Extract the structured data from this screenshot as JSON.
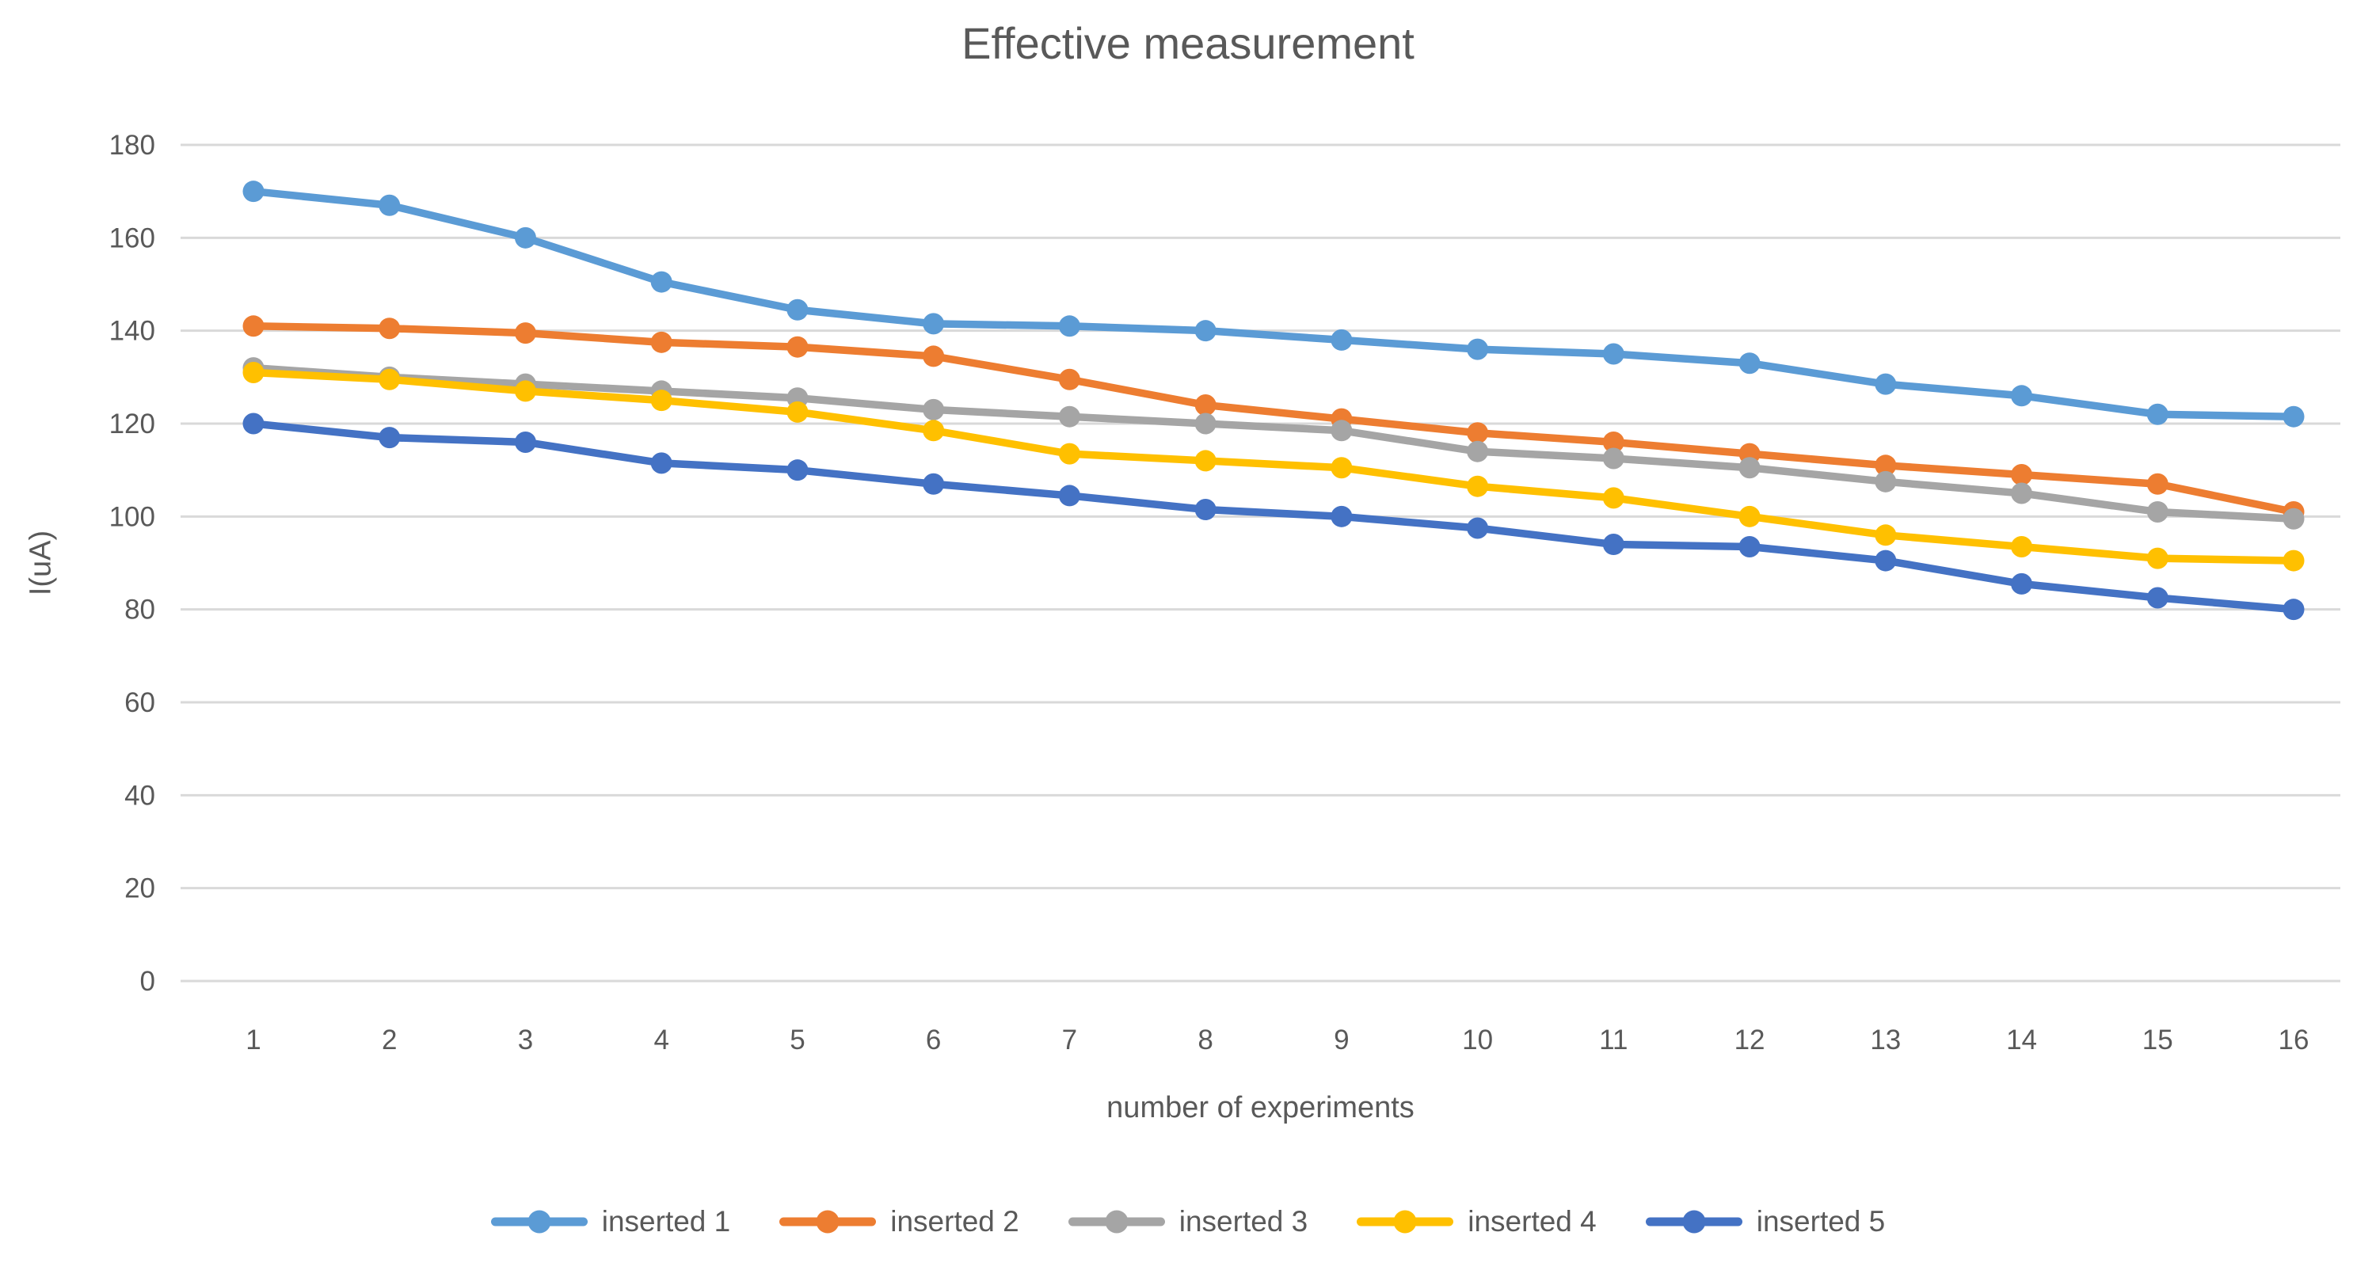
{
  "chart_data": {
    "type": "line",
    "title": "Effective measurement",
    "xlabel": "number of experiments",
    "ylabel": "I(uA)",
    "x": [
      1,
      2,
      3,
      4,
      5,
      6,
      7,
      8,
      9,
      10,
      11,
      12,
      13,
      14,
      15,
      16
    ],
    "ylim": [
      0,
      180
    ],
    "yticks": [
      0,
      20,
      40,
      60,
      80,
      100,
      120,
      140,
      160,
      180
    ],
    "grid": "horizontal",
    "legend_position": "bottom",
    "background_color": "#FFFFFF",
    "gridline_color": "#D9D9D9",
    "text_color": "#595959",
    "series": [
      {
        "name": "inserted 1",
        "color": "#5B9BD5",
        "values": [
          170,
          167,
          160,
          150.5,
          144.5,
          141.5,
          141,
          140,
          138,
          136,
          135,
          133,
          128.5,
          126,
          122,
          121.5
        ]
      },
      {
        "name": "inserted 2",
        "color": "#ED7D31",
        "values": [
          141,
          140.5,
          139.5,
          137.5,
          136.5,
          134.5,
          129.5,
          124,
          121,
          118,
          116,
          113.5,
          111,
          109,
          107,
          101
        ]
      },
      {
        "name": "inserted 3",
        "color": "#A5A5A5",
        "values": [
          132,
          130,
          128.5,
          127,
          125.5,
          123,
          121.5,
          120,
          118.5,
          114,
          112.5,
          110.5,
          107.5,
          105,
          101,
          99.5
        ]
      },
      {
        "name": "inserted 4",
        "color": "#FFC000",
        "values": [
          131,
          129.5,
          127,
          125,
          122.5,
          118.5,
          113.5,
          112,
          110.5,
          106.5,
          104,
          100,
          96,
          93.5,
          91,
          90.5
        ]
      },
      {
        "name": "inserted 5",
        "color": "#4472C4",
        "values": [
          120,
          117,
          116,
          111.5,
          110,
          107,
          104.5,
          101.5,
          100,
          97.5,
          94,
          93.5,
          90.5,
          85.5,
          82.5,
          80
        ]
      }
    ]
  }
}
